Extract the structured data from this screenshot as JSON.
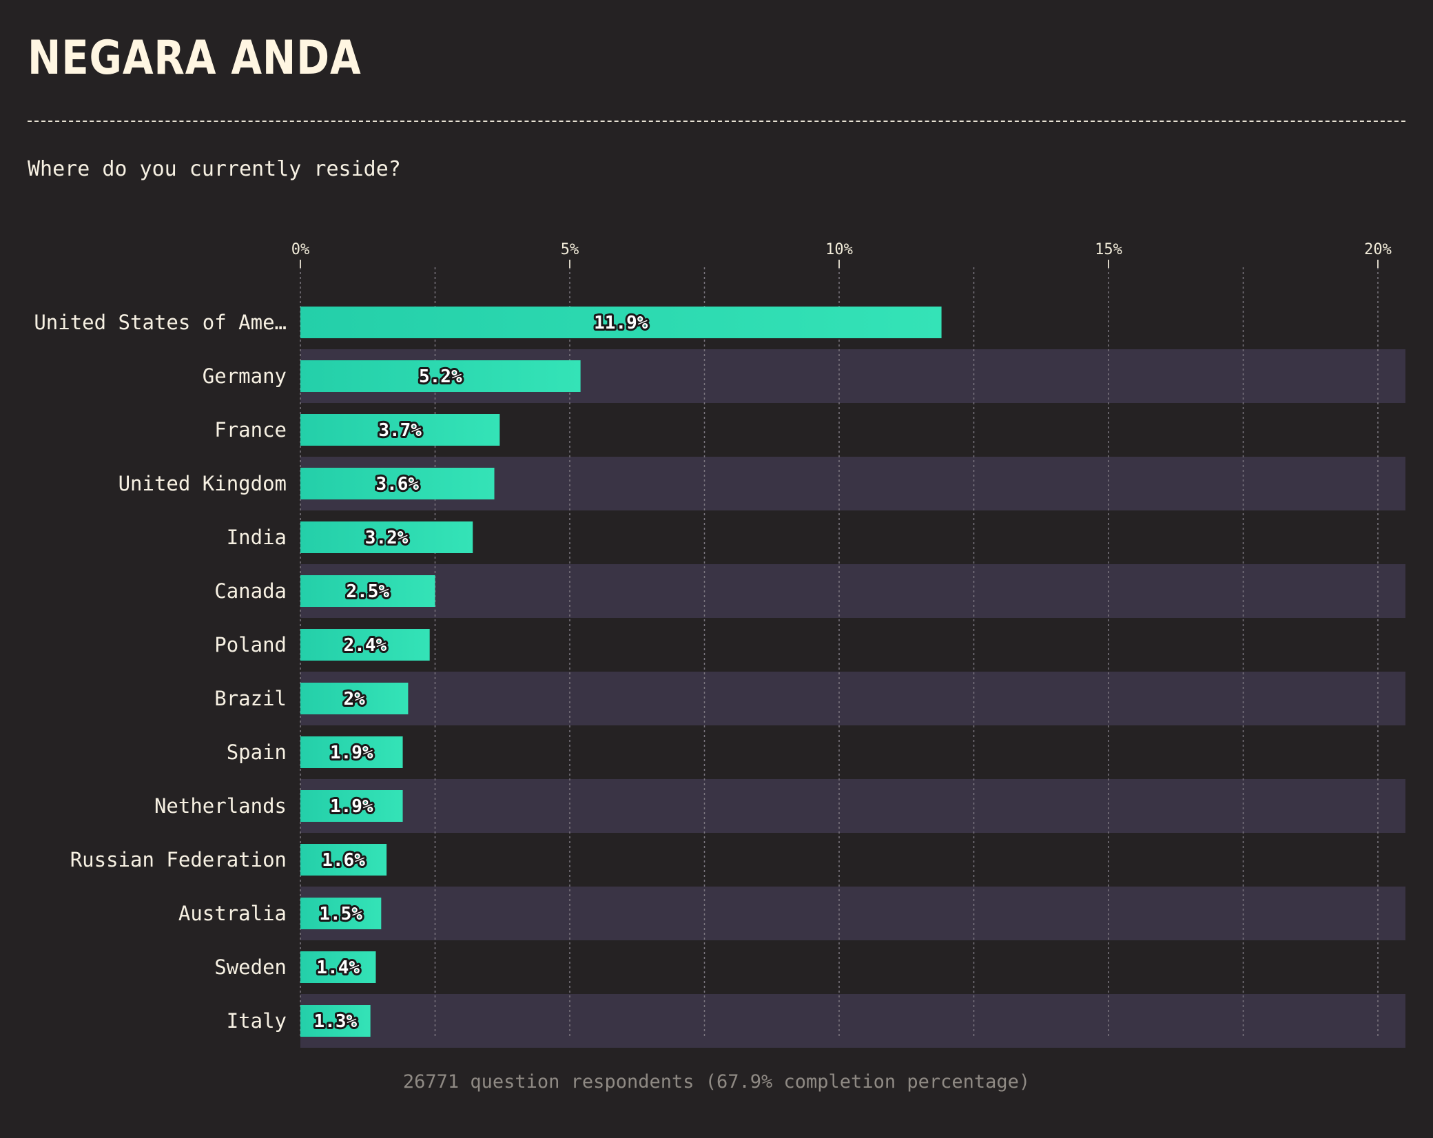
{
  "header": {
    "title": "NEGARA ANDA",
    "question": "Where do you currently reside?"
  },
  "footer": {
    "note": "26771 question respondents (67.9% completion percentage)"
  },
  "colors": {
    "background": "#252223",
    "bar": "#2dd9b0",
    "stripe": "#3a3445",
    "text": "#f7f1e3"
  },
  "chart_data": {
    "type": "bar",
    "orientation": "horizontal",
    "title": "",
    "xlabel": "",
    "ylabel": "",
    "xlim": [
      0,
      20.5
    ],
    "x_ticks": [
      0,
      5,
      10,
      15,
      20
    ],
    "x_tick_labels": [
      "0%",
      "5%",
      "10%",
      "15%",
      "20%"
    ],
    "grid": true,
    "categories": [
      "United States of Ame…",
      "Germany",
      "France",
      "United Kingdom",
      "India",
      "Canada",
      "Poland",
      "Brazil",
      "Spain",
      "Netherlands",
      "Russian Federation",
      "Australia",
      "Sweden",
      "Italy"
    ],
    "values": [
      11.9,
      5.2,
      3.7,
      3.6,
      3.2,
      2.5,
      2.4,
      2.0,
      1.9,
      1.9,
      1.6,
      1.5,
      1.4,
      1.3
    ],
    "value_labels": [
      "11.9%",
      "5.2%",
      "3.7%",
      "3.6%",
      "3.2%",
      "2.5%",
      "2.4%",
      "2%",
      "1.9%",
      "1.9%",
      "1.6%",
      "1.5%",
      "1.4%",
      "1.3%"
    ]
  }
}
